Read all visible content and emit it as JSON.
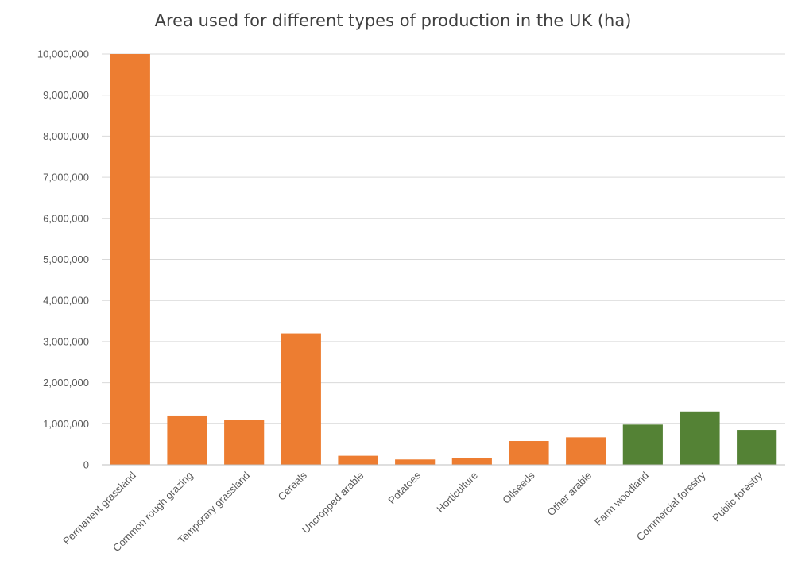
{
  "chart_data": {
    "type": "bar",
    "title": "Area used for different types of production in the UK (ha)",
    "xlabel": "",
    "ylabel": "",
    "ylim": [
      0,
      10000000
    ],
    "yticks": [
      "0",
      "1,000,000",
      "2,000,000",
      "3,000,000",
      "4,000,000",
      "5,000,000",
      "6,000,000",
      "7,000,000",
      "8,000,000",
      "9,000,000",
      "10,000,000"
    ],
    "grid": true,
    "legend": "none",
    "categories": [
      "Permanent grassland",
      "Common rough grazing",
      "Temporary grassland",
      "Cereals",
      "Uncropped arable",
      "Potatoes",
      "Horticulture",
      "Oilseeds",
      "Other arable",
      "Farm woodland",
      "Commercial forestry",
      "Public forestry"
    ],
    "values": [
      10000000,
      1200000,
      1100000,
      3200000,
      220000,
      130000,
      160000,
      580000,
      670000,
      980000,
      1300000,
      850000
    ],
    "colors": [
      "#ed7d31",
      "#ed7d31",
      "#ed7d31",
      "#ed7d31",
      "#ed7d31",
      "#ed7d31",
      "#ed7d31",
      "#ed7d31",
      "#ed7d31",
      "#548235",
      "#548235",
      "#548235"
    ]
  }
}
